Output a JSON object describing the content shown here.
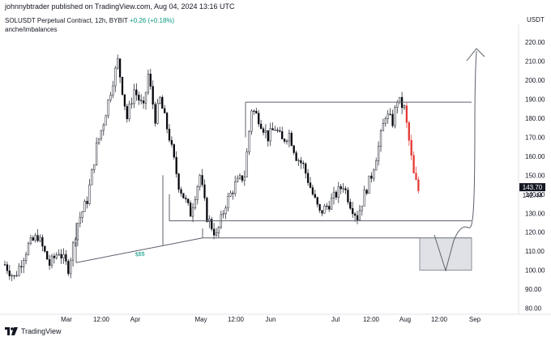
{
  "header": {
    "published_by": "johnnybtrader published on TradingView.com, Aug 04, 2024 13:16 UTC"
  },
  "legend": {
    "symbol": "SOLUSDT Perpetual Contract, 12h, BYBIT",
    "change": "+0.26 (+0.18%)",
    "indicator": "anche/imbalances"
  },
  "footer": {
    "brand": "TradingView",
    "logo_icon": "tradingview-logo-icon"
  },
  "colors": {
    "candle_up": "#ffffff",
    "candle_down": "#000000",
    "recent_drop": "#e53935",
    "drawing_lines": "#5d606b",
    "last_price_bg": "#131722",
    "annotation": "#089981",
    "zone_fill": "#d1d4dc"
  },
  "chart_data": {
    "type": "candlestick",
    "symbol": "SOLUSDT",
    "interval": "12h",
    "y_unit": "USDT",
    "ylim": [
      77,
      229
    ],
    "y_ticks": [
      80,
      90,
      100,
      110,
      120,
      130,
      140,
      150,
      160,
      170,
      180,
      190,
      200,
      210,
      220
    ],
    "y_tick_labels": [
      "80.00",
      "90.00",
      "100.00",
      "110.00",
      "120.00",
      "130.00",
      "140.00",
      "150.00",
      "160.00",
      "170.00",
      "180.00",
      "190.00",
      "200.00",
      "210.00",
      "220.00"
    ],
    "x_tick_labels": [
      "Mar",
      "12:00",
      "Apr",
      "May",
      "12:00",
      "Jun",
      "Jul",
      "12:00",
      "Aug",
      "12:00",
      "Sep"
    ],
    "price_labels": {
      "last": "143.70",
      "secondary": "142.44"
    },
    "grid": false,
    "closes_reference": [
      [
        0,
        103
      ],
      [
        4,
        96
      ],
      [
        10,
        113
      ],
      [
        14,
        118
      ],
      [
        19,
        103
      ],
      [
        23,
        110
      ],
      [
        27,
        101
      ],
      [
        31,
        125
      ],
      [
        35,
        137
      ],
      [
        39,
        165
      ],
      [
        42,
        178
      ],
      [
        46,
        200
      ],
      [
        48,
        210
      ],
      [
        52,
        180
      ],
      [
        55,
        195
      ],
      [
        59,
        185
      ],
      [
        61,
        203
      ],
      [
        64,
        180
      ],
      [
        66,
        190
      ],
      [
        70,
        170
      ],
      [
        74,
        145
      ],
      [
        79,
        130
      ],
      [
        83,
        150
      ],
      [
        86,
        128
      ],
      [
        90,
        118
      ],
      [
        94,
        135
      ],
      [
        98,
        145
      ],
      [
        102,
        150
      ],
      [
        105,
        185
      ],
      [
        108,
        180
      ],
      [
        112,
        170
      ],
      [
        115,
        175
      ],
      [
        118,
        168
      ],
      [
        121,
        172
      ],
      [
        124,
        160
      ],
      [
        127,
        155
      ],
      [
        131,
        140
      ],
      [
        134,
        130
      ],
      [
        138,
        135
      ],
      [
        141,
        140
      ],
      [
        144,
        145
      ],
      [
        147,
        135
      ],
      [
        150,
        128
      ],
      [
        153,
        140
      ],
      [
        156,
        150
      ],
      [
        159,
        165
      ],
      [
        162,
        182
      ],
      [
        165,
        178
      ],
      [
        167,
        190
      ],
      [
        170,
        185
      ],
      [
        172,
        168
      ],
      [
        174,
        150
      ],
      [
        176,
        142
      ]
    ],
    "annotations": [
      {
        "type": "text",
        "text": "$$$"
      },
      {
        "type": "horizontal",
        "price": 188.5
      },
      {
        "type": "horizontal",
        "price": 126
      },
      {
        "type": "horizontal",
        "price": 117
      },
      {
        "type": "rectangle",
        "price_from": 100,
        "price_to": 117
      },
      {
        "type": "arrow",
        "direction": "up"
      }
    ]
  }
}
